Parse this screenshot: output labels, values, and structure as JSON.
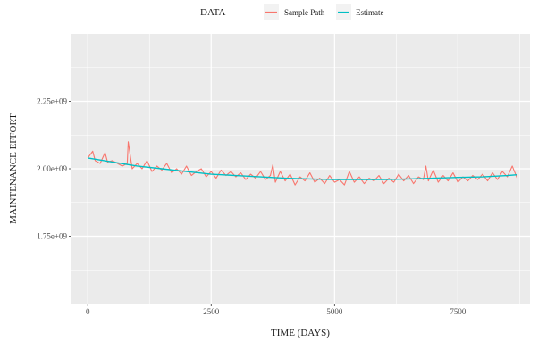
{
  "chart_data": {
    "type": "line",
    "title": "",
    "xlabel": "TIME (DAYS)",
    "ylabel": "MAINTENANCE EFFORT",
    "xlim": [
      -330,
      8960
    ],
    "ylim": [
      1500000000.0,
      2500000000.0
    ],
    "x_ticks": [
      0,
      2500,
      5000,
      7500
    ],
    "x_tick_labels": [
      "0",
      "2500",
      "5000",
      "7500"
    ],
    "y_ticks": [
      1750000000.0,
      2000000000.0,
      2250000000.0
    ],
    "y_tick_labels": [
      "1.75e+09",
      "2.00e+09",
      "2.25e+09"
    ],
    "grid": true,
    "legend": {
      "title": "DATA",
      "position": "top",
      "entries": [
        {
          "name": "Sample Path",
          "color": "#F8766D"
        },
        {
          "name": "Estimate",
          "color": "#00BFC4"
        }
      ]
    },
    "series": [
      {
        "name": "Sample Path",
        "color": "#F8766D",
        "x": [
          0,
          100,
          150,
          250,
          350,
          400,
          500,
          600,
          700,
          800,
          820,
          900,
          1000,
          1100,
          1200,
          1300,
          1400,
          1500,
          1600,
          1700,
          1800,
          1900,
          2000,
          2100,
          2200,
          2300,
          2400,
          2500,
          2600,
          2700,
          2800,
          2900,
          3000,
          3100,
          3200,
          3300,
          3400,
          3500,
          3600,
          3700,
          3750,
          3800,
          3900,
          4000,
          4100,
          4200,
          4300,
          4400,
          4500,
          4600,
          4700,
          4800,
          4900,
          5000,
          5100,
          5200,
          5300,
          5400,
          5500,
          5600,
          5700,
          5800,
          5900,
          6000,
          6100,
          6200,
          6300,
          6400,
          6500,
          6600,
          6700,
          6800,
          6850,
          6900,
          7000,
          7100,
          7200,
          7300,
          7400,
          7500,
          7600,
          7700,
          7800,
          7900,
          8000,
          8100,
          8200,
          8300,
          8400,
          8500,
          8600,
          8700
        ],
        "y": [
          2040000000.0,
          2065000000.0,
          2030000000.0,
          2020000000.0,
          2060000000.0,
          2025000000.0,
          2030000000.0,
          2020000000.0,
          2010000000.0,
          2020000000.0,
          2100000000.0,
          2000000000.0,
          2020000000.0,
          2000000000.0,
          2030000000.0,
          1990000000.0,
          2010000000.0,
          1995000000.0,
          2020000000.0,
          1985000000.0,
          2000000000.0,
          1980000000.0,
          2010000000.0,
          1975000000.0,
          1990000000.0,
          2000000000.0,
          1970000000.0,
          1990000000.0,
          1965000000.0,
          1995000000.0,
          1975000000.0,
          1990000000.0,
          1970000000.0,
          1985000000.0,
          1960000000.0,
          1980000000.0,
          1965000000.0,
          1990000000.0,
          1960000000.0,
          1975000000.0,
          2015000000.0,
          1950000000.0,
          1990000000.0,
          1955000000.0,
          1980000000.0,
          1940000000.0,
          1970000000.0,
          1955000000.0,
          1985000000.0,
          1950000000.0,
          1965000000.0,
          1945000000.0,
          1975000000.0,
          1950000000.0,
          1960000000.0,
          1940000000.0,
          1990000000.0,
          1950000000.0,
          1970000000.0,
          1945000000.0,
          1965000000.0,
          1955000000.0,
          1975000000.0,
          1945000000.0,
          1965000000.0,
          1950000000.0,
          1980000000.0,
          1955000000.0,
          1975000000.0,
          1945000000.0,
          1970000000.0,
          1960000000.0,
          2010000000.0,
          1955000000.0,
          1995000000.0,
          1950000000.0,
          1975000000.0,
          1955000000.0,
          1985000000.0,
          1950000000.0,
          1970000000.0,
          1955000000.0,
          1975000000.0,
          1960000000.0,
          1980000000.0,
          1955000000.0,
          1985000000.0,
          1960000000.0,
          1990000000.0,
          1970000000.0,
          2010000000.0,
          1965000000.0
        ]
      },
      {
        "name": "Estimate",
        "color": "#00BFC4",
        "x": [
          0,
          500,
          1000,
          1500,
          2000,
          2500,
          3000,
          3500,
          4000,
          4500,
          5000,
          5500,
          6000,
          6500,
          7000,
          7500,
          8000,
          8500,
          8700
        ],
        "y": [
          2040000000.0,
          2025000000.0,
          2010000000.0,
          2000000000.0,
          1990000000.0,
          1980000000.0,
          1975000000.0,
          1970000000.0,
          1965000000.0,
          1962000000.0,
          1960000000.0,
          1960000000.0,
          1960000000.0,
          1962000000.0,
          1965000000.0,
          1968000000.0,
          1970000000.0,
          1975000000.0,
          1978000000.0
        ]
      }
    ]
  }
}
